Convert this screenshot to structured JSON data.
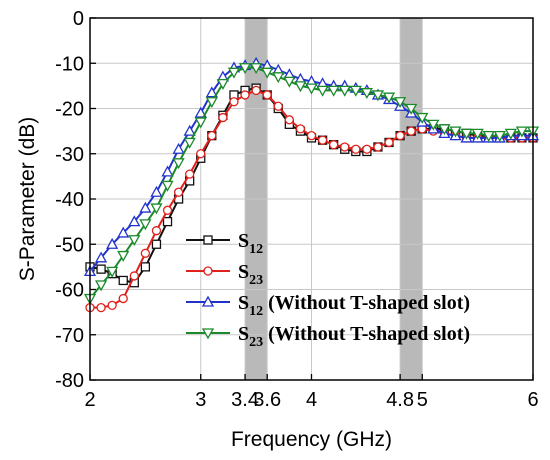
{
  "chart_data": {
    "type": "line",
    "title": "",
    "xlabel": "Frequency (GHz)",
    "ylabel": "S-Parameter (dB)",
    "xlim": [
      2,
      6
    ],
    "ylim": [
      -80,
      0
    ],
    "x_ticks": [
      2,
      3,
      3.4,
      3.6,
      4,
      4.8,
      5,
      6
    ],
    "y_ticks": [
      0,
      -10,
      -20,
      -30,
      -40,
      -50,
      -60,
      -70,
      -80
    ],
    "grid": true,
    "legend_position": "bottom-right",
    "shaded_bands": [
      [
        3.4,
        3.6
      ],
      [
        4.8,
        5.0
      ]
    ],
    "band_color": "#b9b9b9",
    "series": [
      {
        "name": "S12",
        "name_main": "S",
        "name_sub": "12",
        "name_suffix": "",
        "color": "#111111",
        "marker": "square",
        "x": [
          2.0,
          2.1,
          2.2,
          2.3,
          2.4,
          2.5,
          2.6,
          2.7,
          2.8,
          2.9,
          3.0,
          3.1,
          3.2,
          3.3,
          3.4,
          3.5,
          3.6,
          3.7,
          3.8,
          3.9,
          4.0,
          4.1,
          4.2,
          4.3,
          4.4,
          4.5,
          4.6,
          4.7,
          4.8,
          4.9,
          5.0,
          5.1,
          5.2,
          5.3,
          5.4,
          5.5,
          5.6,
          5.7,
          5.8,
          5.9,
          6.0
        ],
        "y": [
          -55,
          -55.5,
          -56.5,
          -58,
          -58.5,
          -55,
          -50,
          -45,
          -40,
          -36,
          -31,
          -26,
          -21.5,
          -17,
          -16,
          -15.5,
          -17,
          -20,
          -23.5,
          -25,
          -26.5,
          -27,
          -28,
          -29,
          -29.5,
          -29.5,
          -28.5,
          -27.5,
          -26,
          -25,
          -24.5,
          -24.5,
          -24.5,
          -25,
          -25.5,
          -26,
          -26,
          -26.5,
          -26.5,
          -26.5,
          -26.5
        ]
      },
      {
        "name": "S23",
        "name_main": "S",
        "name_sub": "23",
        "name_suffix": "",
        "color": "#e0201b",
        "marker": "circle",
        "x": [
          2.0,
          2.1,
          2.2,
          2.3,
          2.4,
          2.5,
          2.6,
          2.7,
          2.8,
          2.9,
          3.0,
          3.1,
          3.2,
          3.3,
          3.4,
          3.5,
          3.6,
          3.7,
          3.8,
          3.9,
          4.0,
          4.1,
          4.2,
          4.3,
          4.4,
          4.5,
          4.6,
          4.7,
          4.8,
          4.9,
          5.0,
          5.1,
          5.2,
          5.3,
          5.4,
          5.5,
          5.6,
          5.7,
          5.8,
          5.9,
          6.0
        ],
        "y": [
          -64,
          -64,
          -63.5,
          -62,
          -57,
          -52,
          -47,
          -42.5,
          -38.5,
          -34.5,
          -30,
          -26,
          -22,
          -18.5,
          -17,
          -16,
          -17,
          -19.5,
          -22.5,
          -24.5,
          -26,
          -27,
          -28,
          -28.5,
          -29,
          -29,
          -28.5,
          -27.5,
          -26,
          -25,
          -24.5,
          -25,
          -25.5,
          -26,
          -26.5,
          -26.5,
          -26.5,
          -26.5,
          -26.5,
          -26.5,
          -26.5
        ]
      },
      {
        "name": "S12 (Without T-shaped slot)",
        "name_main": "S",
        "name_sub": "12",
        "name_suffix": " (Without T-shaped slot)",
        "color": "#2233cc",
        "marker": "triangle-up",
        "x": [
          2.0,
          2.1,
          2.2,
          2.3,
          2.4,
          2.5,
          2.6,
          2.7,
          2.8,
          2.9,
          3.0,
          3.1,
          3.2,
          3.3,
          3.4,
          3.5,
          3.6,
          3.7,
          3.8,
          3.9,
          4.0,
          4.1,
          4.2,
          4.3,
          4.4,
          4.5,
          4.6,
          4.7,
          4.8,
          4.9,
          5.0,
          5.1,
          5.2,
          5.3,
          5.4,
          5.5,
          5.6,
          5.7,
          5.8,
          5.9,
          6.0
        ],
        "y": [
          -56,
          -53,
          -50,
          -47.5,
          -45,
          -42,
          -38.5,
          -34,
          -29,
          -25,
          -21,
          -16.5,
          -13,
          -11,
          -10.5,
          -10,
          -10.5,
          -11.5,
          -12.5,
          -13.5,
          -14,
          -14.5,
          -15,
          -15,
          -15.5,
          -16,
          -17,
          -18,
          -19.5,
          -21,
          -23,
          -24.5,
          -25.5,
          -26,
          -26.5,
          -26.5,
          -26.5,
          -26.5,
          -26,
          -26,
          -26
        ]
      },
      {
        "name": "S23 (Without T-shaped slot)",
        "name_main": "S",
        "name_sub": "23",
        "name_suffix": " (Without T-shaped slot)",
        "color": "#1a8a2a",
        "marker": "triangle-down",
        "x": [
          2.0,
          2.1,
          2.2,
          2.3,
          2.4,
          2.5,
          2.6,
          2.7,
          2.8,
          2.9,
          3.0,
          3.1,
          3.2,
          3.3,
          3.4,
          3.5,
          3.6,
          3.7,
          3.8,
          3.9,
          4.0,
          4.1,
          4.2,
          4.3,
          4.4,
          4.5,
          4.6,
          4.7,
          4.8,
          4.9,
          5.0,
          5.1,
          5.2,
          5.3,
          5.4,
          5.5,
          5.6,
          5.7,
          5.8,
          5.9,
          6.0
        ],
        "y": [
          -62,
          -59,
          -56,
          -52.5,
          -49,
          -45.5,
          -42,
          -37,
          -32,
          -27.5,
          -23,
          -18.5,
          -14.5,
          -12,
          -11,
          -11,
          -12,
          -13,
          -14,
          -15,
          -15.5,
          -16,
          -16,
          -16,
          -16,
          -16.5,
          -17,
          -17.5,
          -18.5,
          -20,
          -22,
          -23.5,
          -24.5,
          -25,
          -25.5,
          -25.5,
          -26,
          -26,
          -25.5,
          -25,
          -25
        ]
      }
    ]
  }
}
